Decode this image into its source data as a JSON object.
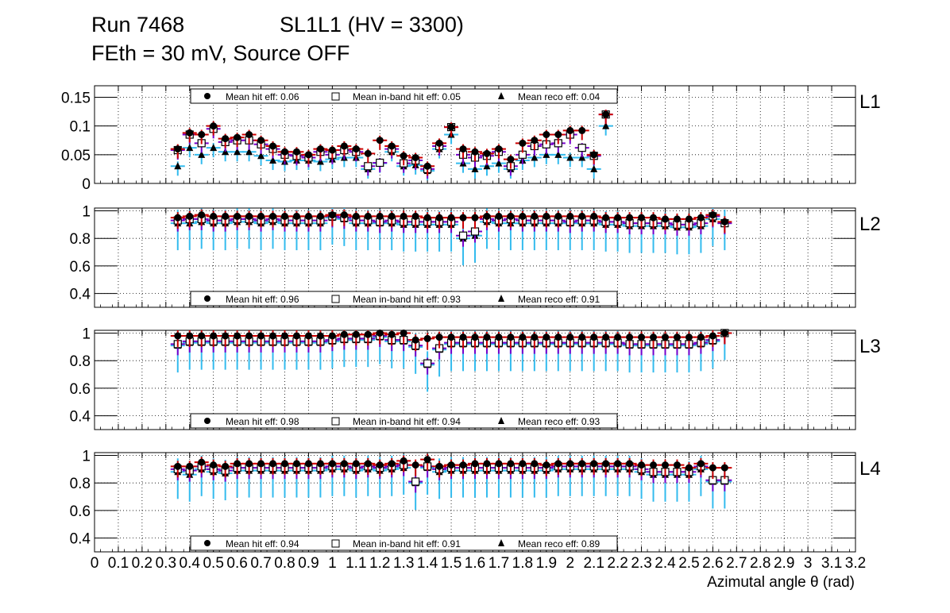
{
  "title": {
    "run": "Run 7468",
    "chamber": "SL1L1 (HV = 3300)",
    "settings": "FEth = 30 mV, Source OFF"
  },
  "chart_data": {
    "type": "scatter",
    "xlabel": "Azimutal angle θ (rad)",
    "xlim": [
      0,
      3.2
    ],
    "x_ticks": [
      "0",
      "0.1",
      "0.2",
      "0.3",
      "0.4",
      "0.5",
      "0.6",
      "0.7",
      "0.8",
      "0.9",
      "1",
      "1.1",
      "1.2",
      "1.3",
      "1.4",
      "1.5",
      "1.6",
      "1.7",
      "1.8",
      "1.9",
      "2",
      "2.1",
      "2.2",
      "2.3",
      "2.4",
      "2.5",
      "2.6",
      "2.7",
      "2.8",
      "2.9",
      "3",
      "3.1",
      "3.2"
    ],
    "x_bins": [
      0.35,
      0.4,
      0.45,
      0.5,
      0.55,
      0.6,
      0.65,
      0.7,
      0.75,
      0.8,
      0.85,
      0.9,
      0.95,
      1.0,
      1.05,
      1.1,
      1.15,
      1.2,
      1.25,
      1.3,
      1.35,
      1.4,
      1.45,
      1.5,
      1.55,
      1.6,
      1.65,
      1.7,
      1.75,
      1.8,
      1.85,
      1.9,
      1.95,
      2.0,
      2.05,
      2.1,
      2.15,
      2.2,
      2.25,
      2.3,
      2.35,
      2.4,
      2.45,
      2.5,
      2.55,
      2.6,
      2.65,
      2.7
    ],
    "colors": {
      "hit": "#cc0000",
      "inband": "#7700cc",
      "reco": "#33bbee",
      "marker": "#000000"
    },
    "panels": [
      {
        "label": "L1",
        "ylim": [
          0,
          0.17
        ],
        "y_ticks": [
          "0",
          "0.05",
          "0.1",
          "0.15"
        ],
        "legend": {
          "hit": "Mean hit  eff: 0.06",
          "inband": "Mean in-band hit eff: 0.05",
          "reco": "Mean reco eff: 0.04"
        },
        "series": {
          "hit": [
            0.06,
            0.088,
            0.085,
            0.1,
            0.078,
            0.08,
            0.085,
            0.075,
            0.065,
            0.055,
            0.055,
            0.05,
            0.06,
            0.058,
            0.065,
            0.06,
            0.052,
            0.075,
            0.065,
            0.048,
            0.045,
            0.03,
            0.07,
            0.098,
            0.06,
            0.055,
            0.052,
            0.06,
            0.042,
            0.07,
            0.075,
            0.085,
            0.085,
            0.092,
            0.092,
            0.05,
            0.12
          ],
          "inband": [
            0.058,
            0.085,
            0.07,
            0.095,
            0.072,
            0.075,
            0.075,
            0.068,
            0.06,
            0.05,
            0.048,
            0.045,
            0.055,
            0.05,
            0.058,
            0.055,
            0.03,
            0.036,
            0.06,
            0.035,
            0.04,
            0.025,
            0.065,
            0.098,
            0.05,
            0.045,
            0.048,
            0.055,
            0.03,
            0.05,
            0.065,
            0.068,
            0.07,
            0.085,
            0.062,
            0.048,
            0.12
          ],
          "reco": [
            0.03,
            0.062,
            0.05,
            0.062,
            0.055,
            0.055,
            0.055,
            0.048,
            0.04,
            0.038,
            0.04,
            0.04,
            0.038,
            0.042,
            0.045,
            0.045,
            0.025,
            0.035,
            0.055,
            0.03,
            0.032,
            0.022,
            0.06,
            0.085,
            0.035,
            0.025,
            0.03,
            0.035,
            0.025,
            0.04,
            0.045,
            0.05,
            0.05,
            0.045,
            0.045,
            0.025,
            0.1
          ]
        }
      },
      {
        "label": "L2",
        "ylim": [
          0.3,
          1.02
        ],
        "y_ticks": [
          "0.4",
          "0.6",
          "0.8",
          "1"
        ],
        "legend": {
          "hit": "Mean hit  eff: 0.96",
          "inband": "Mean in-band hit eff: 0.93",
          "reco": "Mean reco eff: 0.91"
        },
        "series": {
          "hit": [
            0.95,
            0.96,
            0.97,
            0.96,
            0.96,
            0.96,
            0.96,
            0.96,
            0.96,
            0.96,
            0.96,
            0.96,
            0.96,
            0.97,
            0.97,
            0.96,
            0.96,
            0.96,
            0.96,
            0.96,
            0.96,
            0.95,
            0.95,
            0.95,
            0.95,
            0.95,
            0.96,
            0.96,
            0.96,
            0.96,
            0.96,
            0.96,
            0.96,
            0.96,
            0.96,
            0.96,
            0.95,
            0.95,
            0.95,
            0.95,
            0.95,
            0.94,
            0.94,
            0.94,
            0.95,
            0.97,
            0.92
          ],
          "inband": [
            0.93,
            0.94,
            0.94,
            0.93,
            0.93,
            0.94,
            0.94,
            0.93,
            0.94,
            0.93,
            0.93,
            0.93,
            0.93,
            0.96,
            0.95,
            0.93,
            0.93,
            0.92,
            0.93,
            0.92,
            0.92,
            0.92,
            0.92,
            0.92,
            0.82,
            0.85,
            0.94,
            0.93,
            0.94,
            0.93,
            0.93,
            0.93,
            0.93,
            0.92,
            0.93,
            0.93,
            0.92,
            0.92,
            0.91,
            0.91,
            0.91,
            0.91,
            0.9,
            0.9,
            0.91,
            0.96,
            0.91
          ],
          "reco": [
            0.91,
            0.91,
            0.92,
            0.91,
            0.91,
            0.92,
            0.92,
            0.91,
            0.92,
            0.91,
            0.91,
            0.91,
            0.91,
            0.95,
            0.94,
            0.91,
            0.91,
            0.91,
            0.91,
            0.9,
            0.9,
            0.9,
            0.9,
            0.9,
            0.8,
            0.82,
            0.92,
            0.91,
            0.91,
            0.91,
            0.91,
            0.91,
            0.91,
            0.91,
            0.91,
            0.91,
            0.9,
            0.9,
            0.89,
            0.89,
            0.89,
            0.89,
            0.88,
            0.88,
            0.89,
            0.94,
            0.91
          ]
        }
      },
      {
        "label": "L3",
        "ylim": [
          0.3,
          1.02
        ],
        "y_ticks": [
          "0.4",
          "0.6",
          "0.8",
          "1"
        ],
        "legend": {
          "hit": "Mean hit  eff: 0.98",
          "inband": "Mean in-band hit eff: 0.94",
          "reco": "Mean reco eff: 0.93"
        },
        "series": {
          "hit": [
            0.98,
            0.98,
            0.98,
            0.98,
            0.98,
            0.98,
            0.98,
            0.98,
            0.98,
            0.98,
            0.98,
            0.98,
            0.98,
            0.98,
            0.99,
            0.99,
            0.99,
            1.0,
            0.99,
            1.0,
            0.95,
            0.96,
            0.97,
            0.97,
            0.97,
            0.97,
            0.97,
            0.97,
            0.97,
            0.97,
            0.97,
            0.97,
            0.97,
            0.97,
            0.97,
            0.97,
            0.97,
            0.97,
            0.97,
            0.97,
            0.97,
            0.97,
            0.97,
            0.97,
            0.97,
            0.98,
            1.0
          ],
          "inband": [
            0.92,
            0.94,
            0.94,
            0.94,
            0.94,
            0.94,
            0.94,
            0.94,
            0.94,
            0.94,
            0.94,
            0.94,
            0.94,
            0.95,
            0.96,
            0.96,
            0.96,
            0.98,
            0.95,
            0.95,
            0.91,
            0.78,
            0.89,
            0.93,
            0.93,
            0.93,
            0.93,
            0.93,
            0.93,
            0.93,
            0.93,
            0.93,
            0.93,
            0.93,
            0.93,
            0.93,
            0.93,
            0.93,
            0.92,
            0.92,
            0.92,
            0.92,
            0.92,
            0.92,
            0.93,
            0.95,
            1.0
          ],
          "reco": [
            0.91,
            0.93,
            0.93,
            0.93,
            0.93,
            0.93,
            0.93,
            0.93,
            0.93,
            0.93,
            0.93,
            0.93,
            0.93,
            0.94,
            0.95,
            0.95,
            0.95,
            0.97,
            0.94,
            0.94,
            0.9,
            0.77,
            0.88,
            0.92,
            0.92,
            0.92,
            0.92,
            0.92,
            0.92,
            0.92,
            0.92,
            0.92,
            0.92,
            0.92,
            0.92,
            0.92,
            0.92,
            0.92,
            0.91,
            0.91,
            0.91,
            0.91,
            0.91,
            0.91,
            0.92,
            0.94,
            1.0
          ]
        }
      },
      {
        "label": "L4",
        "ylim": [
          0.3,
          1.02
        ],
        "y_ticks": [
          "0.4",
          "0.6",
          "0.8",
          "1"
        ],
        "legend": {
          "hit": "Mean hit  eff: 0.94",
          "inband": "Mean in-band hit eff: 0.91",
          "reco": "Mean reco eff: 0.89"
        },
        "series": {
          "hit": [
            0.92,
            0.92,
            0.95,
            0.93,
            0.92,
            0.94,
            0.94,
            0.94,
            0.94,
            0.94,
            0.94,
            0.94,
            0.94,
            0.94,
            0.94,
            0.94,
            0.94,
            0.93,
            0.94,
            0.96,
            0.93,
            0.97,
            0.92,
            0.93,
            0.93,
            0.94,
            0.94,
            0.94,
            0.94,
            0.94,
            0.94,
            0.93,
            0.94,
            0.94,
            0.94,
            0.94,
            0.94,
            0.94,
            0.94,
            0.93,
            0.93,
            0.93,
            0.93,
            0.91,
            0.94,
            0.91,
            0.91
          ],
          "inband": [
            0.9,
            0.89,
            0.92,
            0.9,
            0.89,
            0.91,
            0.91,
            0.91,
            0.91,
            0.91,
            0.91,
            0.91,
            0.91,
            0.92,
            0.92,
            0.91,
            0.92,
            0.91,
            0.92,
            0.93,
            0.81,
            0.92,
            0.9,
            0.91,
            0.91,
            0.91,
            0.91,
            0.91,
            0.91,
            0.91,
            0.91,
            0.91,
            0.92,
            0.92,
            0.92,
            0.92,
            0.92,
            0.92,
            0.92,
            0.9,
            0.88,
            0.88,
            0.88,
            0.88,
            0.92,
            0.82,
            0.82
          ],
          "reco": [
            0.88,
            0.86,
            0.9,
            0.88,
            0.87,
            0.89,
            0.89,
            0.89,
            0.89,
            0.89,
            0.89,
            0.89,
            0.89,
            0.9,
            0.9,
            0.89,
            0.9,
            0.89,
            0.9,
            0.91,
            0.8,
            0.91,
            0.88,
            0.89,
            0.89,
            0.89,
            0.89,
            0.89,
            0.89,
            0.89,
            0.89,
            0.89,
            0.9,
            0.9,
            0.9,
            0.9,
            0.9,
            0.9,
            0.9,
            0.88,
            0.86,
            0.86,
            0.86,
            0.86,
            0.9,
            0.81,
            0.81
          ]
        }
      }
    ]
  }
}
